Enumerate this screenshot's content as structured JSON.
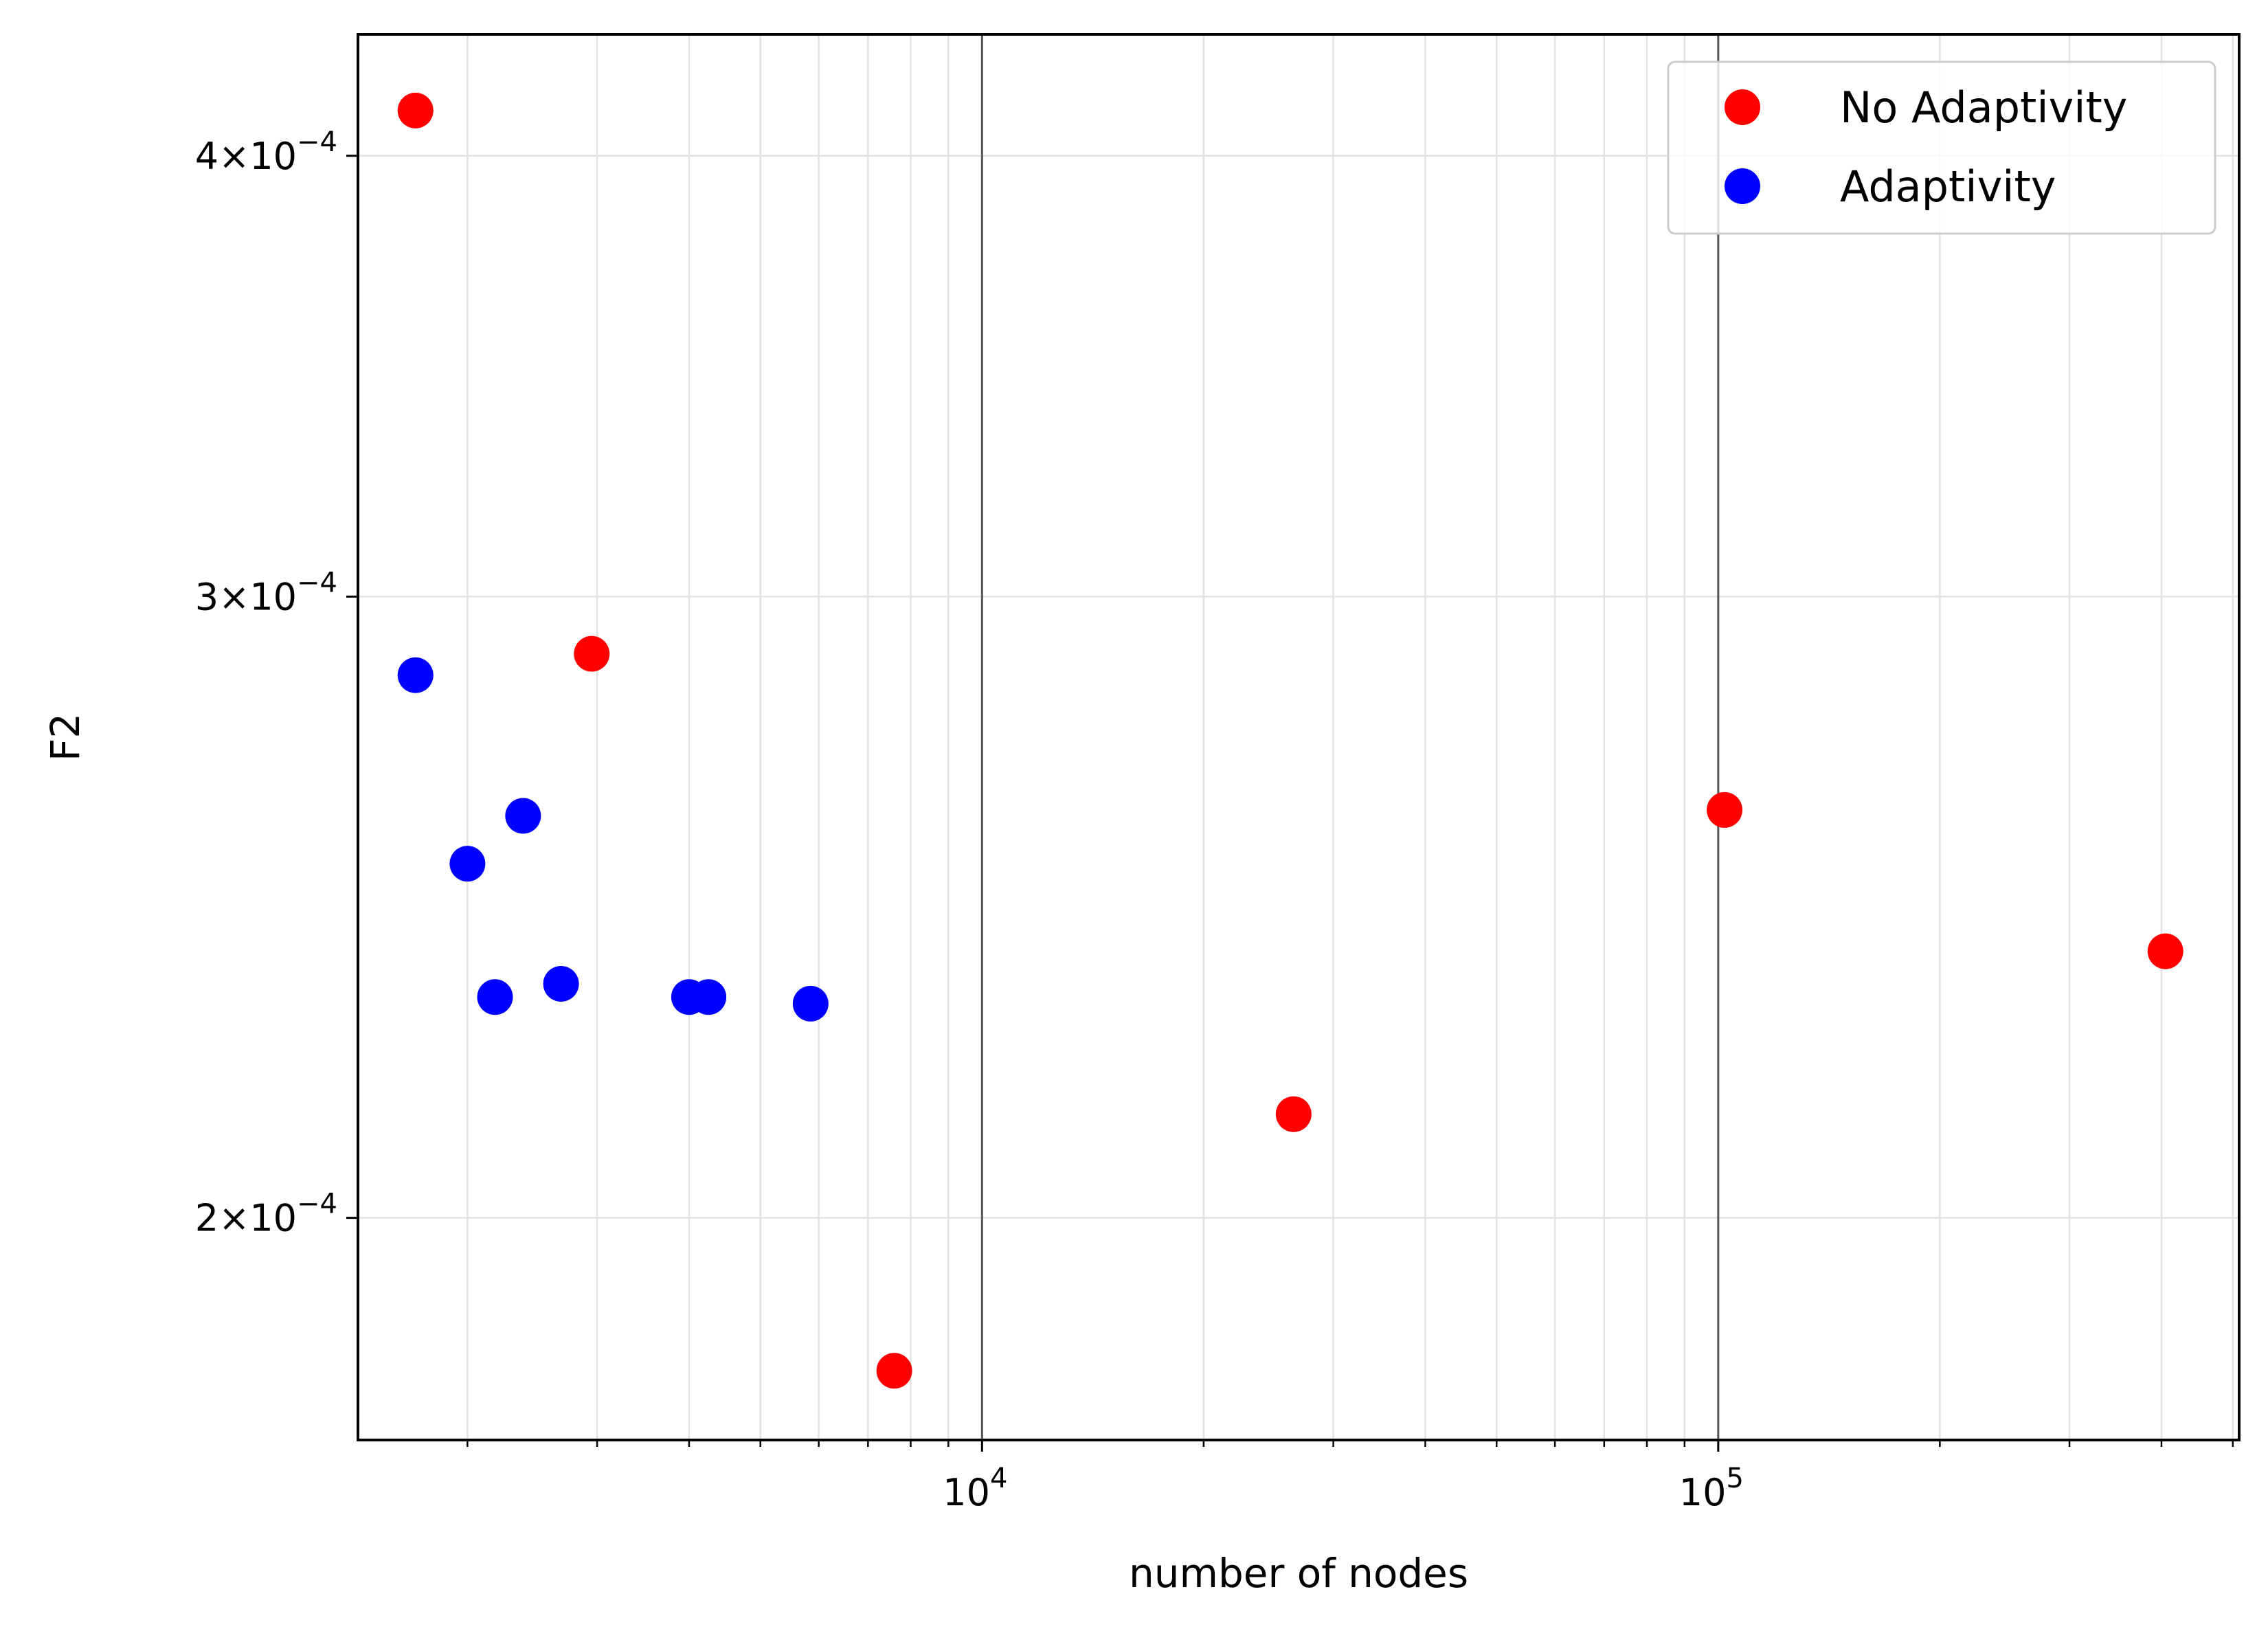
{
  "chart_data": {
    "type": "scatter",
    "title": "",
    "xlabel": "number of nodes",
    "ylabel": "F2",
    "xscale": "log",
    "yscale": "log",
    "xlim": [
      1420,
      510000
    ],
    "ylim": [
      0.000173,
      0.000433
    ],
    "grid": "major and minor",
    "legend": "top-right",
    "x_ticks": [
      {
        "value": 10000,
        "base": "10",
        "exp": "4"
      },
      {
        "value": 100000,
        "base": "10",
        "exp": "5"
      }
    ],
    "y_ticks": [
      {
        "value": 0.0004,
        "coef": "4",
        "times": "×",
        "base": "10",
        "exp": "−4"
      },
      {
        "value": 0.0003,
        "coef": "3",
        "times": "×",
        "base": "10",
        "exp": "−4"
      },
      {
        "value": 0.0002,
        "coef": "2",
        "times": "×",
        "base": "10",
        "exp": "−4"
      }
    ],
    "series": [
      {
        "name": "No Adaptivity",
        "color": "#ff0000",
        "points": [
          {
            "x": 1700,
            "y": 0.000412
          },
          {
            "x": 2950,
            "y": 0.000289
          },
          {
            "x": 7600,
            "y": 0.000181
          },
          {
            "x": 26500,
            "y": 0.000214
          },
          {
            "x": 102000,
            "y": 0.000261
          },
          {
            "x": 405000,
            "y": 0.000238
          }
        ]
      },
      {
        "name": "Adaptivity",
        "color": "#0000ff",
        "points": [
          {
            "x": 1700,
            "y": 0.000285
          },
          {
            "x": 2000,
            "y": 0.000252
          },
          {
            "x": 2180,
            "y": 0.000231
          },
          {
            "x": 2380,
            "y": 0.00026
          },
          {
            "x": 2680,
            "y": 0.000233
          },
          {
            "x": 4000,
            "y": 0.000231
          },
          {
            "x": 4250,
            "y": 0.000231
          },
          {
            "x": 5850,
            "y": 0.00023
          }
        ]
      }
    ]
  }
}
